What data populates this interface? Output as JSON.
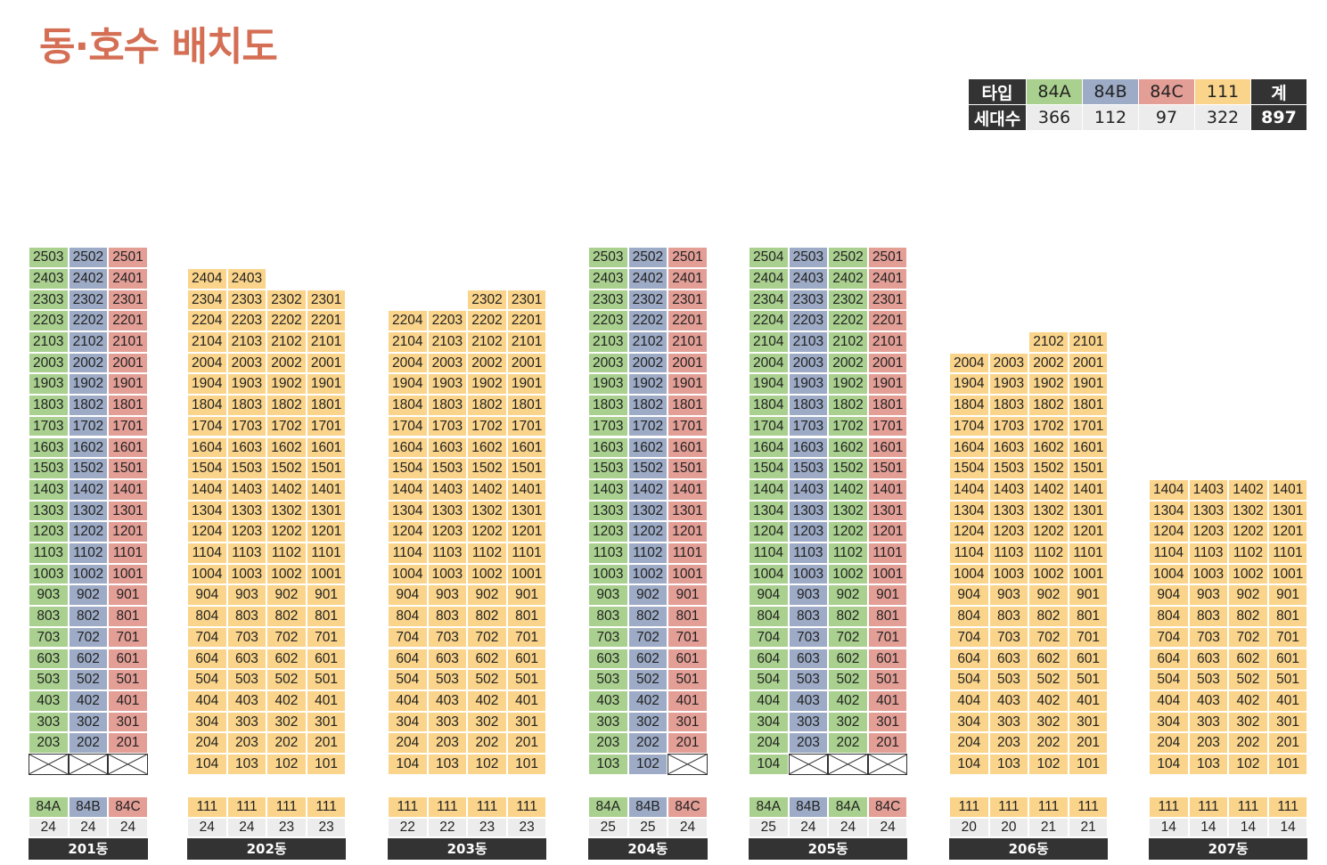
{
  "title": "동·호수 배치도",
  "summary": {
    "type_label": "타입",
    "count_label": "세대수",
    "types": [
      "84A",
      "84B",
      "84C",
      "111"
    ],
    "counts": [
      "366",
      "112",
      "97",
      "322"
    ],
    "total_label": "계",
    "total": "897"
  },
  "colors": {
    "84A": "#a9d08e",
    "84B": "#9dabc6",
    "84C": "#e39e96",
    "111": "#fad48a",
    "dark": "#333333"
  },
  "buildings": [
    {
      "name": "201동",
      "columns": [
        {
          "type": "84A",
          "unit": "03",
          "count": "24",
          "max": 25,
          "min": 2
        },
        {
          "type": "84B",
          "unit": "02",
          "count": "24",
          "max": 25,
          "min": 2
        },
        {
          "type": "84C",
          "unit": "01",
          "count": "24",
          "max": 25,
          "min": 2
        }
      ]
    },
    {
      "name": "202동",
      "columns": [
        {
          "type": "111",
          "unit": "04",
          "count": "24",
          "max": 24,
          "min": 1
        },
        {
          "type": "111",
          "unit": "03",
          "count": "24",
          "max": 24,
          "min": 1
        },
        {
          "type": "111",
          "unit": "02",
          "count": "23",
          "max": 23,
          "min": 1
        },
        {
          "type": "111",
          "unit": "01",
          "count": "23",
          "max": 23,
          "min": 1
        }
      ]
    },
    {
      "name": "203동",
      "columns": [
        {
          "type": "111",
          "unit": "04",
          "count": "22",
          "max": 22,
          "min": 1
        },
        {
          "type": "111",
          "unit": "03",
          "count": "22",
          "max": 22,
          "min": 1
        },
        {
          "type": "111",
          "unit": "02",
          "count": "23",
          "max": 23,
          "min": 1
        },
        {
          "type": "111",
          "unit": "01",
          "count": "23",
          "max": 23,
          "min": 1
        }
      ]
    },
    {
      "name": "204동",
      "columns": [
        {
          "type": "84A",
          "unit": "03",
          "count": "25",
          "max": 25,
          "min": 1
        },
        {
          "type": "84B",
          "unit": "02",
          "count": "25",
          "max": 25,
          "min": 1
        },
        {
          "type": "84C",
          "unit": "01",
          "count": "24",
          "max": 25,
          "min": 2
        }
      ]
    },
    {
      "name": "205동",
      "columns": [
        {
          "type": "84A",
          "unit": "04",
          "count": "25",
          "max": 25,
          "min": 1
        },
        {
          "type": "84B",
          "unit": "03",
          "count": "24",
          "max": 25,
          "min": 2
        },
        {
          "type": "84A",
          "unit": "02",
          "count": "24",
          "max": 25,
          "min": 2
        },
        {
          "type": "84C",
          "unit": "01",
          "count": "24",
          "max": 25,
          "min": 2
        }
      ]
    },
    {
      "name": "206동",
      "columns": [
        {
          "type": "111",
          "unit": "04",
          "count": "20",
          "max": 20,
          "min": 1
        },
        {
          "type": "111",
          "unit": "03",
          "count": "20",
          "max": 20,
          "min": 1
        },
        {
          "type": "111",
          "unit": "02",
          "count": "21",
          "max": 21,
          "min": 1
        },
        {
          "type": "111",
          "unit": "01",
          "count": "21",
          "max": 21,
          "min": 1
        }
      ]
    },
    {
      "name": "207동",
      "columns": [
        {
          "type": "111",
          "unit": "04",
          "count": "14",
          "max": 14,
          "min": 1
        },
        {
          "type": "111",
          "unit": "03",
          "count": "14",
          "max": 14,
          "min": 1
        },
        {
          "type": "111",
          "unit": "02",
          "count": "14",
          "max": 14,
          "min": 1
        },
        {
          "type": "111",
          "unit": "01",
          "count": "14",
          "max": 14,
          "min": 1
        }
      ]
    }
  ]
}
